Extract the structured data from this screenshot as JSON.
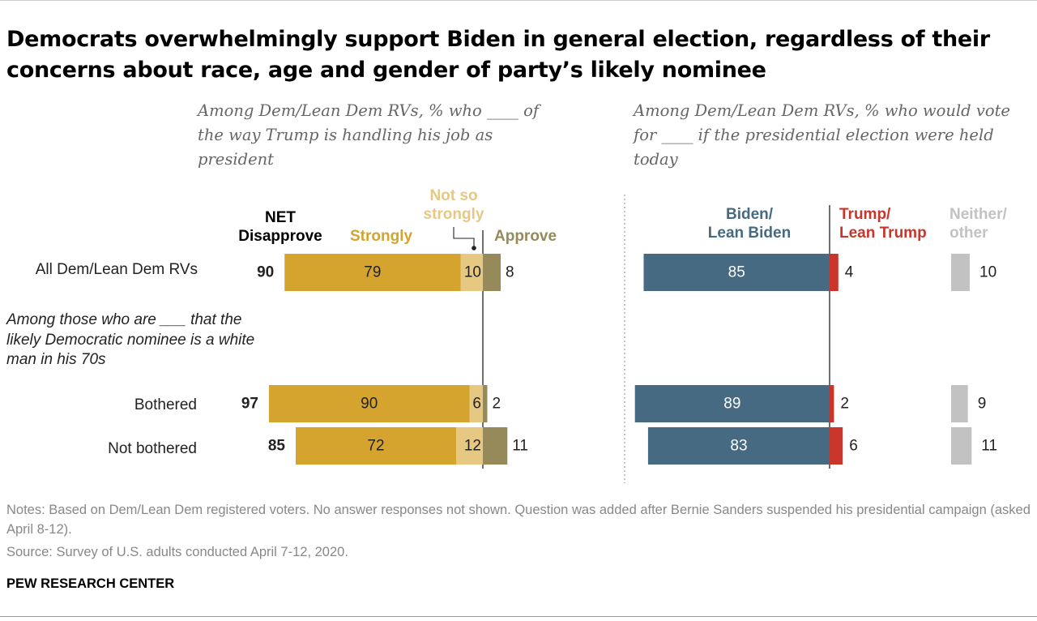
{
  "title": "Democrats overwhelmingly support Biden in general election, regardless of their concerns about race, age and gender of party’s likely nominee",
  "left_subtitle": "Among Dem/Lean Dem RVs, % who ____ of the way Trump is handling his job as president",
  "right_subtitle": "Among Dem/Lean Dem RVs, % who would vote for ____ if the presidential election were held today",
  "legend": {
    "net_line1": "NET",
    "net_line2": "Disapprove",
    "strongly": "Strongly",
    "not_so_line1": "Not so",
    "not_so_line2": "strongly",
    "approve": "Approve",
    "biden_line1": "Biden/",
    "biden_line2": "Lean Biden",
    "trump_line1": "Trump/",
    "trump_line2": "Lean Trump",
    "neither_line1": "Neither/",
    "neither_line2": "other"
  },
  "rows": [
    {
      "label": "All Dem/Lean Dem RVs"
    },
    {
      "label": "Bothered"
    },
    {
      "label": "Not bothered"
    }
  ],
  "subgroup_heading": "Among those who are ___ that the likely Democratic nominee is a white man in his 70s",
  "colors": {
    "strongly": "#d4a42e",
    "not_so_strongly": "#e6c883",
    "approve": "#968a5a",
    "biden": "#456a82",
    "trump": "#c9352a",
    "neither": "#c2c2c2"
  },
  "chart_data": [
    {
      "type": "bar",
      "orientation": "horizontal-diverging",
      "title": "Among Dem/Lean Dem RVs, % who ____ of the way Trump is handling his job as president",
      "categories": [
        "All Dem/Lean Dem RVs",
        "Bothered",
        "Not bothered"
      ],
      "net_disapprove": [
        90,
        97,
        85
      ],
      "series": [
        {
          "name": "Strongly",
          "values": [
            79,
            90,
            72
          ]
        },
        {
          "name": "Not so strongly",
          "values": [
            10,
            6,
            12
          ]
        },
        {
          "name": "Approve",
          "values": [
            8,
            2,
            11
          ]
        }
      ]
    },
    {
      "type": "bar",
      "orientation": "horizontal-diverging",
      "title": "Among Dem/Lean Dem RVs, % who would vote for ____ if the presidential election were held today",
      "categories": [
        "All Dem/Lean Dem RVs",
        "Bothered",
        "Not bothered"
      ],
      "series": [
        {
          "name": "Biden/Lean Biden",
          "values": [
            85,
            89,
            83
          ]
        },
        {
          "name": "Trump/Lean Trump",
          "values": [
            4,
            2,
            6
          ]
        },
        {
          "name": "Neither/other",
          "values": [
            10,
            9,
            11
          ]
        }
      ]
    }
  ],
  "notes": "Notes: Based on Dem/Lean Dem registered voters. No answer responses not shown. Question was added after Bernie Sanders suspended his presidential campaign (asked April 8-12).",
  "source": "Source: Survey of U.S. adults conducted April 7-12, 2020.",
  "brand": "PEW RESEARCH CENTER"
}
